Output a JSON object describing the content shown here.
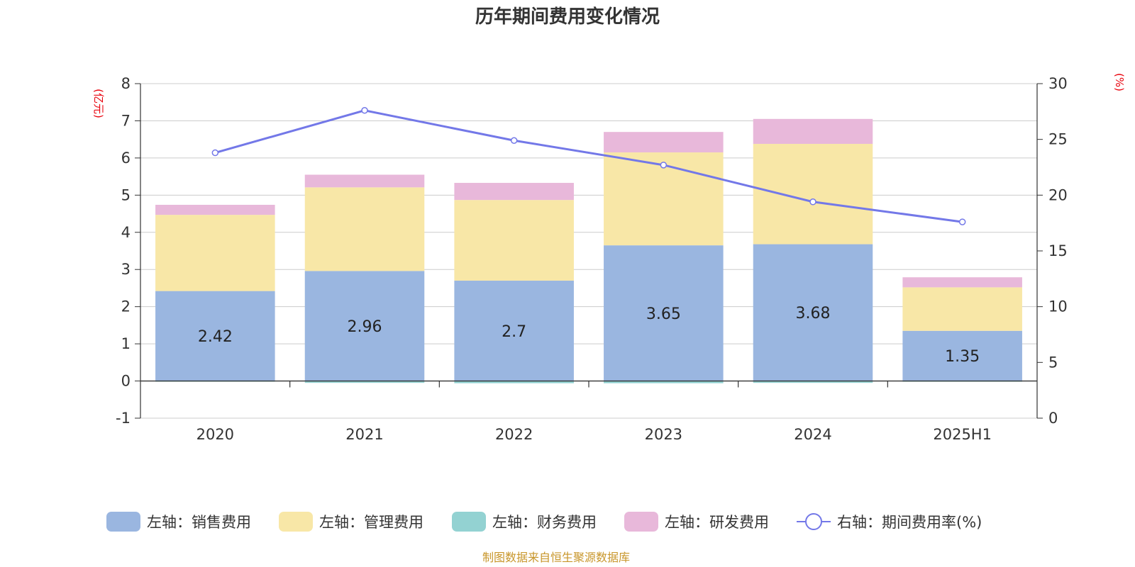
{
  "chart_data": {
    "type": "bar",
    "title": "历年期间费用变化情况",
    "categories": [
      "2020",
      "2021",
      "2022",
      "2023",
      "2024",
      "2025H1"
    ],
    "left_axis": {
      "unit": "(亿元)",
      "ylim": [
        -1,
        8
      ],
      "ticks": [
        -1,
        0,
        1,
        2,
        3,
        4,
        5,
        6,
        7,
        8
      ]
    },
    "right_axis": {
      "unit": "(%)",
      "ylim": [
        0,
        30
      ],
      "ticks": [
        0,
        5,
        10,
        15,
        20,
        25,
        30
      ]
    },
    "series": [
      {
        "name": "左轴：销售费用",
        "kind": "bar",
        "stack": "left",
        "color": "#9ab6e0",
        "values": [
          2.42,
          2.96,
          2.7,
          3.65,
          3.68,
          1.35
        ],
        "show_labels": true
      },
      {
        "name": "左轴：管理费用",
        "kind": "bar",
        "stack": "left",
        "color": "#f8e7a7",
        "values": [
          2.05,
          2.25,
          2.17,
          2.5,
          2.7,
          1.17
        ]
      },
      {
        "name": "左轴：财务费用",
        "kind": "bar",
        "stack": "left",
        "color": "#93d2d2",
        "values": [
          -0.01,
          -0.05,
          -0.06,
          -0.06,
          -0.05,
          -0.02
        ]
      },
      {
        "name": "左轴：研发费用",
        "kind": "bar",
        "stack": "left",
        "color": "#e8b8da",
        "values": [
          0.27,
          0.34,
          0.46,
          0.55,
          0.67,
          0.27
        ]
      },
      {
        "name": "右轴：期间费用率(%)",
        "kind": "line",
        "axis": "right",
        "color": "#7378e8",
        "values": [
          23.8,
          27.6,
          24.9,
          22.7,
          19.4,
          17.6
        ]
      }
    ],
    "grid": true,
    "legend": "bottom-center"
  },
  "source": "制图数据来自恒生聚源数据库"
}
